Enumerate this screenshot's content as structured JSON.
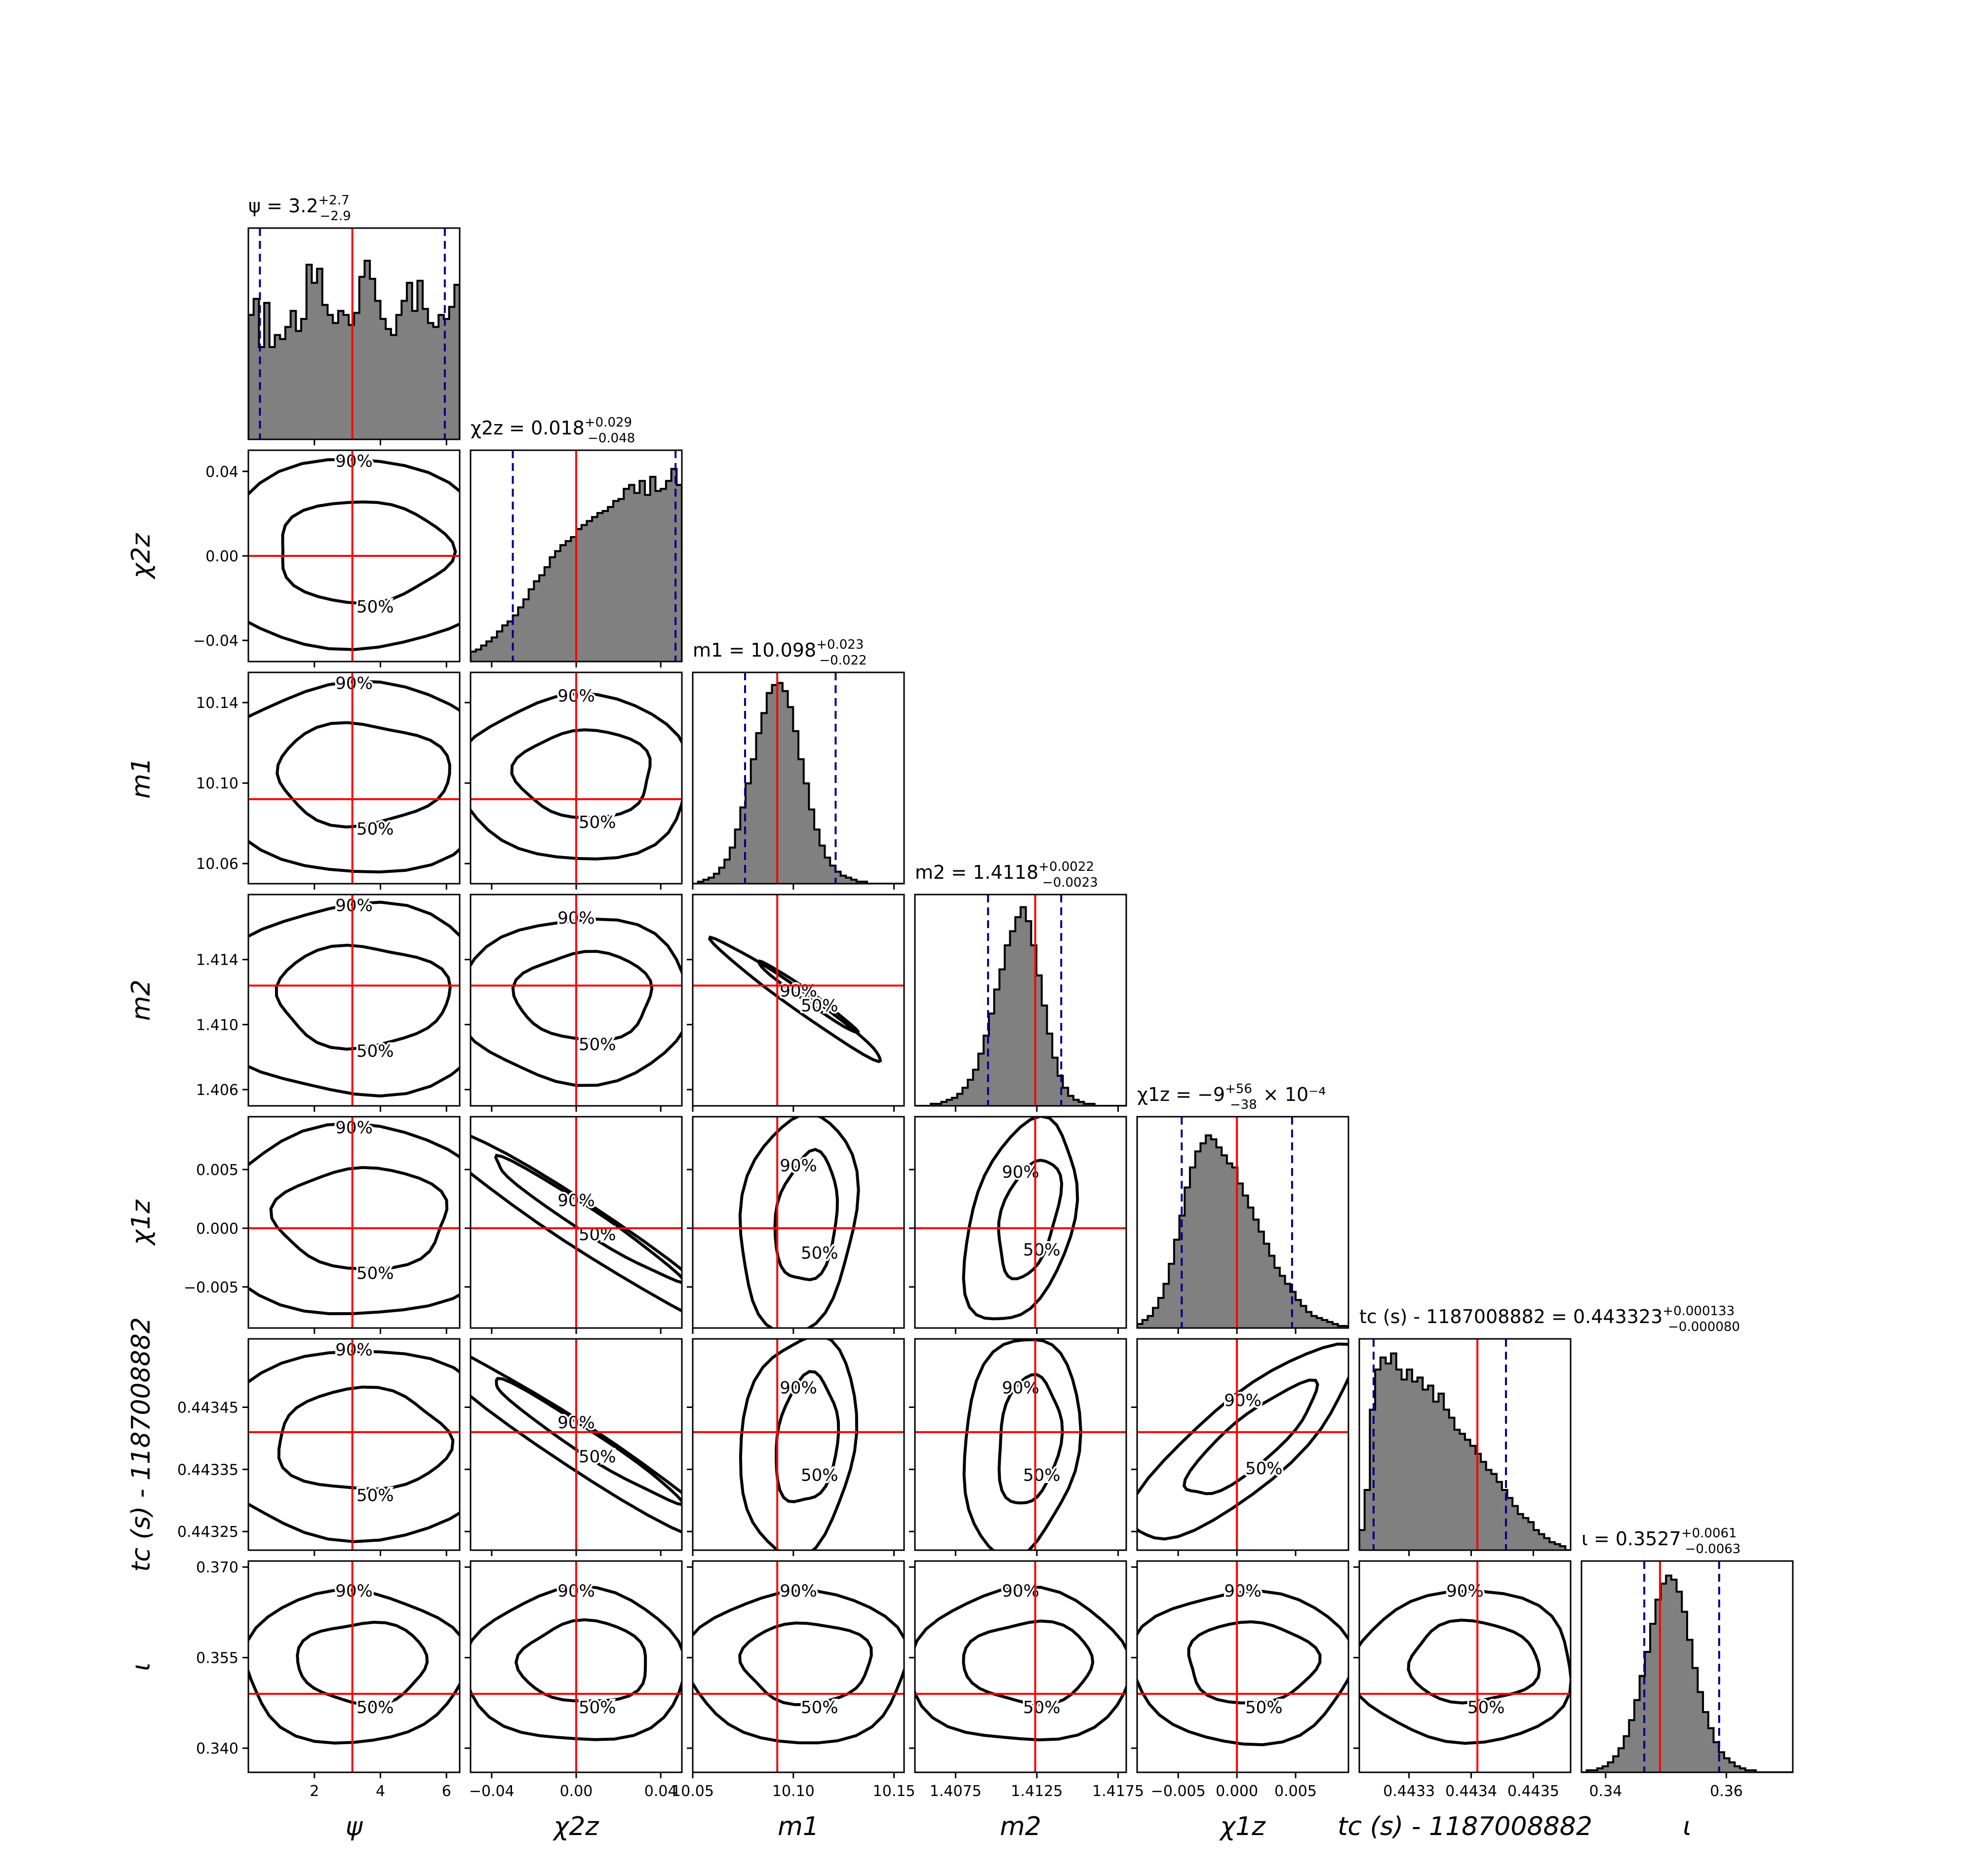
{
  "chart_data": {
    "type": "corner",
    "params": [
      {
        "key": "psi",
        "label": "ψ",
        "ticks": [
          2,
          4,
          6
        ],
        "tick_labels": [
          "2",
          "4",
          "6"
        ],
        "range": [
          0,
          6.4
        ],
        "truth": 3.15,
        "median": 3.2,
        "ci": [
          0.35,
          5.95
        ],
        "title": {
          "pre": "ψ = 3.2",
          "sup": "+2.7",
          "sub": "−2.9",
          "post": ""
        },
        "hist": [
          0.62,
          0.7,
          0.46,
          0.68,
          0.46,
          0.52,
          0.5,
          0.56,
          0.64,
          0.54,
          0.6,
          0.87,
          0.78,
          0.85,
          0.67,
          0.62,
          0.58,
          0.64,
          0.62,
          0.57,
          0.63,
          0.81,
          0.89,
          0.8,
          0.69,
          0.6,
          0.55,
          0.52,
          0.62,
          0.69,
          0.78,
          0.64,
          0.79,
          0.65,
          0.58,
          0.56,
          0.62,
          0.6,
          0.66,
          0.77
        ]
      },
      {
        "key": "chi2z",
        "label": "χ2z",
        "ticks": [
          -0.04,
          0,
          0.04
        ],
        "tick_labels": [
          "−0.04",
          "0.00",
          "0.04"
        ],
        "range": [
          -0.05,
          0.05
        ],
        "truth": 0.0,
        "median": 0.018,
        "ci": [
          -0.03,
          0.047
        ],
        "title": {
          "pre": "χ2z = 0.018",
          "sup": "+0.029",
          "sub": "−0.048",
          "post": ""
        },
        "hist": [
          0.05,
          0.06,
          0.08,
          0.1,
          0.12,
          0.15,
          0.18,
          0.2,
          0.23,
          0.27,
          0.31,
          0.36,
          0.4,
          0.43,
          0.47,
          0.52,
          0.55,
          0.58,
          0.6,
          0.62,
          0.66,
          0.68,
          0.7,
          0.72,
          0.74,
          0.75,
          0.77,
          0.8,
          0.81,
          0.86,
          0.88,
          0.84,
          0.9,
          0.83,
          0.92,
          0.85,
          0.86,
          0.9,
          0.96,
          0.88
        ]
      },
      {
        "key": "m1",
        "label": "m1",
        "ticks": [
          10.05,
          10.1,
          10.15
        ],
        "tick_labels": [
          "10.05",
          "10.10",
          "10.15"
        ],
        "range": [
          10.05,
          10.155
        ],
        "truth": 10.092,
        "median": 10.098,
        "ci": [
          10.076,
          10.121
        ],
        "tick_labels_y": [
          "10.06",
          "10.10",
          "10.14"
        ],
        "ticks_y": [
          10.06,
          10.1,
          10.14
        ],
        "title": {
          "pre": "m1 = 10.098",
          "sup": "+0.023",
          "sub": "−0.022",
          "post": ""
        },
        "hist": [
          0.0,
          0.01,
          0.02,
          0.03,
          0.05,
          0.08,
          0.12,
          0.18,
          0.27,
          0.38,
          0.5,
          0.62,
          0.75,
          0.85,
          0.95,
          0.99,
          1.0,
          0.96,
          0.88,
          0.76,
          0.62,
          0.5,
          0.37,
          0.27,
          0.19,
          0.13,
          0.09,
          0.06,
          0.04,
          0.03,
          0.02,
          0.01,
          0.01,
          0.0,
          0.0,
          0.0,
          0.0,
          0.0,
          0.0,
          0.0
        ]
      },
      {
        "key": "m2",
        "label": "m2",
        "ticks": [
          1.4075,
          1.4125,
          1.4175
        ],
        "tick_labels": [
          "1.4075",
          "1.4125",
          "1.4175"
        ],
        "range": [
          1.405,
          1.418
        ],
        "truth": 1.4124,
        "median": 1.4118,
        "ci": [
          1.4095,
          1.414
        ],
        "ticks_y": [
          1.406,
          1.41,
          1.414
        ],
        "tick_labels_y": [
          "1.406",
          "1.410",
          "1.414"
        ],
        "title": {
          "pre": "m2 = 1.4118",
          "sup": "+0.0022",
          "sub": "−0.0023",
          "post": ""
        },
        "hist": [
          0.0,
          0.0,
          0.0,
          0.01,
          0.01,
          0.02,
          0.03,
          0.04,
          0.06,
          0.09,
          0.13,
          0.18,
          0.26,
          0.35,
          0.46,
          0.58,
          0.68,
          0.8,
          0.87,
          0.94,
          0.99,
          0.92,
          0.8,
          0.65,
          0.5,
          0.36,
          0.24,
          0.15,
          0.09,
          0.05,
          0.03,
          0.02,
          0.01,
          0.01,
          0.0,
          0.0,
          0.0,
          0.0,
          0.0,
          0.0
        ]
      },
      {
        "key": "chi1z",
        "label": "χ1z",
        "ticks": [
          -0.005,
          0,
          0.005
        ],
        "tick_labels": [
          "−0.005",
          "0.000",
          "0.005"
        ],
        "range": [
          -0.0085,
          0.0095
        ],
        "truth": 0.0,
        "median": -0.0009,
        "ci": [
          -0.0047,
          0.0047
        ],
        "title": {
          "pre": "χ1z = −9",
          "sup": "+56",
          "sub": "−38",
          "post": " × 10⁻⁴"
        },
        "hist": [
          0.02,
          0.04,
          0.06,
          0.1,
          0.15,
          0.22,
          0.32,
          0.44,
          0.56,
          0.7,
          0.8,
          0.88,
          0.92,
          0.96,
          0.94,
          0.9,
          0.86,
          0.82,
          0.8,
          0.72,
          0.66,
          0.6,
          0.54,
          0.48,
          0.42,
          0.36,
          0.3,
          0.26,
          0.22,
          0.18,
          0.14,
          0.11,
          0.08,
          0.06,
          0.05,
          0.04,
          0.03,
          0.02,
          0.01,
          0.01
        ]
      },
      {
        "key": "tc",
        "label": "tc (s) - 1187008882",
        "ticks": [
          0.4433,
          0.4434,
          0.4435
        ],
        "tick_labels": [
          "0.4433",
          "0.4434",
          "0.4435"
        ],
        "range": [
          0.44322,
          0.44356
        ],
        "truth": 0.44341,
        "median": 0.443323,
        "ci": [
          0.443243,
          0.443456
        ],
        "ticks_y": [
          0.44325,
          0.44335,
          0.44345
        ],
        "tick_labels_y": [
          "0.44325",
          "0.44335",
          "0.44345"
        ],
        "title": {
          "pre": "tc (s) - 1187008882 = 0.443323",
          "sup": "+0.000133",
          "sub": "−0.000080",
          "post": ""
        },
        "hist": [
          0.1,
          0.3,
          0.7,
          0.9,
          0.96,
          0.93,
          0.98,
          0.9,
          0.85,
          0.9,
          0.84,
          0.86,
          0.8,
          0.82,
          0.74,
          0.78,
          0.7,
          0.66,
          0.6,
          0.58,
          0.55,
          0.52,
          0.48,
          0.44,
          0.4,
          0.38,
          0.34,
          0.3,
          0.26,
          0.22,
          0.18,
          0.16,
          0.14,
          0.1,
          0.08,
          0.06,
          0.04,
          0.03,
          0.02,
          0.0
        ]
      },
      {
        "key": "iota",
        "label": "ι",
        "ticks": [
          0.34,
          0.36
        ],
        "tick_labels": [
          "0.34",
          "0.36"
        ],
        "range": [
          0.336,
          0.371
        ],
        "truth": 0.349,
        "median": 0.3527,
        "ci": [
          0.3464,
          0.3588
        ],
        "ticks_y": [
          0.34,
          0.355,
          0.37
        ],
        "tick_labels_y": [
          "0.340",
          "0.355",
          "0.370"
        ],
        "title": {
          "pre": "ι = 0.3527",
          "sup": "+0.0061",
          "sub": "−0.0063",
          "post": ""
        },
        "hist": [
          0.0,
          0.01,
          0.01,
          0.02,
          0.03,
          0.05,
          0.08,
          0.12,
          0.18,
          0.26,
          0.36,
          0.48,
          0.6,
          0.74,
          0.86,
          0.94,
          0.98,
          0.96,
          0.9,
          0.8,
          0.66,
          0.52,
          0.4,
          0.3,
          0.22,
          0.15,
          0.1,
          0.07,
          0.05,
          0.03,
          0.02,
          0.01,
          0.01,
          0.0,
          0.0,
          0.0,
          0.0,
          0.0,
          0.0,
          0.0
        ]
      }
    ],
    "contour_labels": [
      "50%",
      "90%"
    ],
    "colors": {
      "hist_fill": "#808080",
      "truth": "#ff0000",
      "ci_line": "#00008b",
      "contour": "#000000"
    }
  }
}
